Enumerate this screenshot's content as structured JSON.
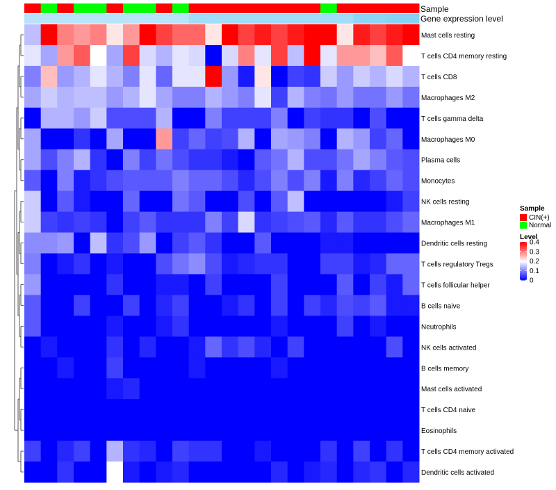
{
  "chart_data": {
    "type": "heatmap",
    "title": "",
    "annotation_labels": {
      "sample": "Sample",
      "expression": "Gene expression level"
    },
    "legend_sample": {
      "title": "Sample",
      "entries": [
        {
          "label": "CIN(+)",
          "color": "#ff0000"
        },
        {
          "label": "Normal",
          "color": "#00ff00"
        }
      ]
    },
    "legend_level": {
      "title": "Level",
      "ticks": [
        "0.4",
        "0.3",
        "0.2",
        "0.1",
        "0"
      ],
      "tick_values": [
        0.4,
        0.3,
        0.2,
        0.1,
        0.0
      ],
      "range": [
        0,
        0.4
      ],
      "colors": {
        "low": "#0000ff",
        "mid": "#ffffff",
        "high": "#ff0000"
      }
    },
    "sample_groups": [
      "CIN(+)",
      "Normal",
      "CIN(+)",
      "Normal",
      "Normal",
      "CIN(+)",
      "Normal",
      "Normal",
      "CIN(+)",
      "Normal",
      "CIN(+)",
      "CIN(+)",
      "CIN(+)",
      "CIN(+)",
      "CIN(+)",
      "CIN(+)",
      "CIN(+)",
      "CIN(+)",
      "Normal",
      "CIN(+)",
      "CIN(+)",
      "CIN(+)",
      "CIN(+)",
      "CIN(+)"
    ],
    "expression_level_bar": [
      0.25,
      0.25,
      0.25,
      0.25,
      0.25,
      0.25,
      0.25,
      0.25,
      0.25,
      0.25,
      0.4,
      0.4,
      0.4,
      0.4,
      0.4,
      0.4,
      0.4,
      0.4,
      0.4,
      0.4,
      0.55,
      0.55,
      0.6,
      0.6
    ],
    "rows": [
      "Mast cells resting",
      "T cells CD4 memory resting",
      "T cells CD8",
      "Macrophages M2",
      "T cells gamma delta",
      "Macrophages M0",
      "Plasma cells",
      "Monocytes",
      "NK cells resting",
      "Macrophages M1",
      "Dendritic cells resting",
      "T cells regulatory  Tregs",
      "T cells follicular helper",
      "B cells naive",
      "Neutrophils",
      "NK cells activated",
      "B cells memory",
      "Mast cells activated",
      "T cells CD4 naive",
      "Eosinophils",
      "T cells CD4 memory activated",
      "Dendritic cells activated"
    ],
    "values": [
      [
        0.15,
        0.4,
        0.3,
        0.28,
        0.3,
        0.22,
        0.28,
        0.4,
        0.35,
        0.32,
        0.32,
        0.22,
        0.4,
        0.35,
        0.38,
        0.35,
        0.38,
        0.4,
        0.4,
        0.22,
        0.38,
        0.35,
        0.38,
        0.4
      ],
      [
        0.18,
        0.13,
        0.28,
        0.33,
        0.2,
        0.13,
        0.35,
        0.17,
        0.14,
        0.18,
        0.17,
        0.0,
        0.17,
        0.3,
        0.18,
        0.35,
        0.15,
        0.4,
        0.18,
        0.28,
        0.28,
        0.25,
        0.33,
        0.2
      ],
      [
        0.1,
        0.25,
        0.12,
        0.14,
        0.18,
        0.14,
        0.1,
        0.18,
        0.08,
        0.18,
        0.18,
        0.4,
        0.12,
        0.02,
        0.22,
        0.0,
        0.05,
        0.04,
        0.16,
        0.12,
        0.16,
        0.14,
        0.17,
        0.14
      ],
      [
        0.13,
        0.16,
        0.14,
        0.15,
        0.15,
        0.12,
        0.14,
        0.18,
        0.13,
        0.1,
        0.1,
        0.14,
        0.12,
        0.1,
        0.18,
        0.05,
        0.14,
        0.1,
        0.09,
        0.12,
        0.09,
        0.09,
        0.12,
        0.09
      ],
      [
        0.0,
        0.14,
        0.14,
        0.12,
        0.16,
        0.06,
        0.06,
        0.06,
        0.14,
        0.0,
        0.0,
        0.1,
        0.05,
        0.05,
        0.05,
        0.1,
        0.0,
        0.05,
        0.04,
        0.04,
        0.0,
        0.06,
        0.0,
        0.0
      ],
      [
        0.13,
        0.0,
        0.0,
        0.04,
        0.0,
        0.13,
        0.0,
        0.0,
        0.28,
        0.05,
        0.08,
        0.05,
        0.06,
        0.14,
        0.0,
        0.13,
        0.12,
        0.1,
        0.0,
        0.14,
        0.12,
        0.05,
        0.08,
        0.0
      ],
      [
        0.13,
        0.06,
        0.1,
        0.14,
        0.04,
        0.0,
        0.1,
        0.05,
        0.09,
        0.06,
        0.04,
        0.04,
        0.02,
        0.0,
        0.07,
        0.09,
        0.14,
        0.06,
        0.06,
        0.09,
        0.13,
        0.1,
        0.07,
        0.06
      ],
      [
        0.07,
        0.0,
        0.1,
        0.02,
        0.04,
        0.06,
        0.07,
        0.07,
        0.07,
        0.1,
        0.08,
        0.08,
        0.06,
        0.03,
        0.06,
        0.1,
        0.06,
        0.1,
        0.02,
        0.1,
        0.03,
        0.05,
        0.08,
        0.06
      ],
      [
        0.16,
        0.0,
        0.07,
        0.02,
        0.0,
        0.0,
        0.08,
        0.0,
        0.0,
        0.09,
        0.07,
        0.0,
        0.0,
        0.06,
        0.0,
        0.07,
        0.15,
        0.0,
        0.0,
        0.0,
        0.0,
        0.0,
        0.02,
        0.05
      ],
      [
        0.16,
        0.05,
        0.04,
        0.05,
        0.04,
        0.0,
        0.05,
        0.07,
        0.04,
        0.04,
        0.04,
        0.1,
        0.05,
        0.17,
        0.04,
        0.05,
        0.06,
        0.07,
        0.03,
        0.07,
        0.04,
        0.04,
        0.06,
        0.08
      ],
      [
        0.11,
        0.11,
        0.12,
        0.0,
        0.15,
        0.04,
        0.06,
        0.12,
        0.0,
        0.05,
        0.07,
        0.04,
        0.0,
        0.0,
        0.07,
        0.0,
        0.0,
        0.0,
        0.02,
        0.02,
        0.0,
        0.0,
        0.0,
        0.0
      ],
      [
        0.1,
        0.0,
        0.02,
        0.04,
        0.0,
        0.02,
        0.0,
        0.0,
        0.06,
        0.09,
        0.11,
        0.06,
        0.02,
        0.03,
        0.04,
        0.04,
        0.0,
        0.0,
        0.05,
        0.05,
        0.02,
        0.03,
        0.08,
        0.08
      ],
      [
        0.12,
        0.0,
        0.0,
        0.0,
        0.0,
        0.04,
        0.0,
        0.0,
        0.02,
        0.02,
        0.0,
        0.05,
        0.0,
        0.0,
        0.0,
        0.05,
        0.0,
        0.0,
        0.0,
        0.07,
        0.0,
        0.05,
        0.02,
        0.08
      ],
      [
        0.07,
        0.0,
        0.0,
        0.05,
        0.0,
        0.0,
        0.05,
        0.0,
        0.03,
        0.05,
        0.0,
        0.0,
        0.02,
        0.04,
        0.0,
        0.05,
        0.0,
        0.05,
        0.03,
        0.06,
        0.05,
        0.07,
        0.02,
        0.02
      ],
      [
        0.07,
        0.0,
        0.0,
        0.0,
        0.0,
        0.02,
        0.0,
        0.0,
        0.02,
        0.04,
        0.0,
        0.0,
        0.0,
        0.0,
        0.0,
        0.02,
        0.0,
        0.0,
        0.0,
        0.05,
        0.0,
        0.02,
        0.0,
        0.0
      ],
      [
        0.0,
        0.02,
        0.0,
        0.0,
        0.0,
        0.04,
        0.0,
        0.03,
        0.0,
        0.0,
        0.02,
        0.08,
        0.04,
        0.06,
        0.03,
        0.0,
        0.05,
        0.0,
        0.0,
        0.0,
        0.0,
        0.0,
        0.06,
        0.0
      ],
      [
        0.0,
        0.0,
        0.02,
        0.0,
        0.0,
        0.05,
        0.0,
        0.0,
        0.0,
        0.0,
        0.02,
        0.0,
        0.0,
        0.0,
        0.0,
        0.02,
        0.0,
        0.0,
        0.0,
        0.0,
        0.0,
        0.0,
        0.0,
        0.0
      ],
      [
        0.0,
        0.0,
        0.0,
        0.0,
        0.0,
        0.02,
        0.03,
        0.0,
        0.0,
        0.0,
        0.0,
        0.0,
        0.0,
        0.0,
        0.0,
        0.0,
        0.0,
        0.0,
        0.0,
        0.0,
        0.0,
        0.0,
        0.0,
        0.0
      ],
      [
        0.0,
        0.0,
        0.0,
        0.0,
        0.0,
        0.0,
        0.0,
        0.0,
        0.0,
        0.0,
        0.0,
        0.0,
        0.0,
        0.0,
        0.0,
        0.0,
        0.0,
        0.0,
        0.0,
        0.0,
        0.0,
        0.0,
        0.0,
        0.0
      ],
      [
        0.0,
        0.0,
        0.0,
        0.0,
        0.0,
        0.0,
        0.0,
        0.0,
        0.0,
        0.0,
        0.0,
        0.0,
        0.0,
        0.0,
        0.0,
        0.0,
        0.0,
        0.0,
        0.0,
        0.0,
        0.0,
        0.0,
        0.0,
        0.0
      ],
      [
        0.05,
        0.0,
        0.03,
        0.05,
        0.0,
        0.14,
        0.04,
        0.03,
        0.0,
        0.05,
        0.04,
        0.04,
        0.0,
        0.0,
        0.02,
        0.0,
        0.0,
        0.0,
        0.04,
        0.0,
        0.05,
        0.0,
        0.04,
        0.0
      ],
      [
        0.0,
        0.0,
        0.04,
        0.0,
        0.0,
        0.2,
        0.02,
        0.0,
        0.02,
        0.03,
        0.0,
        0.0,
        0.0,
        0.0,
        0.0,
        0.03,
        0.0,
        0.02,
        0.03,
        0.0,
        0.03,
        0.04,
        0.0,
        0.03
      ]
    ],
    "row_dendrogram_order": "hierarchical clustering (rows)"
  }
}
